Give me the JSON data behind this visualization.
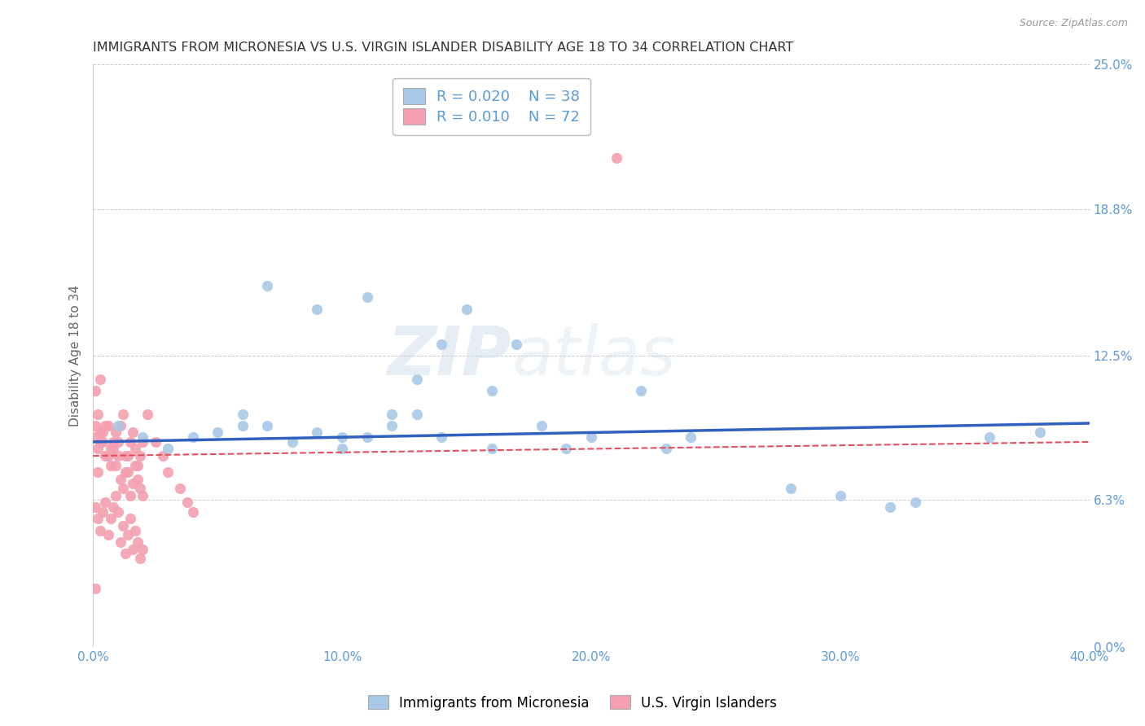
{
  "title": "IMMIGRANTS FROM MICRONESIA VS U.S. VIRGIN ISLANDER DISABILITY AGE 18 TO 34 CORRELATION CHART",
  "source": "Source: ZipAtlas.com",
  "ylabel": "Disability Age 18 to 34",
  "xlim": [
    0.0,
    0.4
  ],
  "ylim": [
    0.0,
    0.25
  ],
  "xticks": [
    0.0,
    0.1,
    0.2,
    0.3,
    0.4
  ],
  "xtick_labels": [
    "0.0%",
    "10.0%",
    "20.0%",
    "30.0%",
    "40.0%"
  ],
  "yticks": [
    0.0,
    0.063,
    0.125,
    0.188,
    0.25
  ],
  "ytick_labels_right": [
    "0.0%",
    "6.3%",
    "12.5%",
    "18.8%",
    "25.0%"
  ],
  "blue_color": "#A8C8E8",
  "pink_color": "#F4A0B0",
  "blue_line_color": "#3060C0",
  "pink_line_color": "#E05060",
  "legend_r1": "R = 0.020",
  "legend_n1": "N = 38",
  "legend_r2": "R = 0.010",
  "legend_n2": "N = 72",
  "series1_label": "Immigrants from Micronesia",
  "series2_label": "U.S. Virgin Islanders",
  "watermark": "ZIPatlas",
  "background_color": "#FFFFFF",
  "grid_color": "#CCCCCC",
  "title_color": "#333333",
  "axis_label_color": "#666666",
  "tick_color": "#5B9BD5",
  "blue_scatter_x": [
    0.01,
    0.02,
    0.03,
    0.04,
    0.05,
    0.06,
    0.07,
    0.08,
    0.09,
    0.1,
    0.11,
    0.12,
    0.13,
    0.14,
    0.15,
    0.16,
    0.17,
    0.18,
    0.2,
    0.22,
    0.06,
    0.07,
    0.09,
    0.1,
    0.11,
    0.12,
    0.13,
    0.14,
    0.16,
    0.19,
    0.23,
    0.24,
    0.28,
    0.3,
    0.32,
    0.33,
    0.36,
    0.38
  ],
  "blue_scatter_y": [
    0.095,
    0.09,
    0.085,
    0.09,
    0.092,
    0.1,
    0.095,
    0.088,
    0.092,
    0.09,
    0.15,
    0.095,
    0.1,
    0.13,
    0.145,
    0.11,
    0.13,
    0.095,
    0.09,
    0.11,
    0.095,
    0.155,
    0.145,
    0.085,
    0.09,
    0.1,
    0.115,
    0.09,
    0.085,
    0.085,
    0.085,
    0.09,
    0.068,
    0.065,
    0.06,
    0.062,
    0.09,
    0.092
  ],
  "pink_scatter_x": [
    0.001,
    0.002,
    0.003,
    0.004,
    0.005,
    0.006,
    0.007,
    0.008,
    0.009,
    0.01,
    0.011,
    0.012,
    0.013,
    0.014,
    0.015,
    0.016,
    0.017,
    0.018,
    0.019,
    0.02,
    0.001,
    0.002,
    0.003,
    0.004,
    0.005,
    0.006,
    0.007,
    0.008,
    0.009,
    0.01,
    0.011,
    0.012,
    0.013,
    0.014,
    0.015,
    0.016,
    0.017,
    0.018,
    0.019,
    0.02,
    0.001,
    0.002,
    0.003,
    0.004,
    0.005,
    0.006,
    0.007,
    0.008,
    0.009,
    0.01,
    0.011,
    0.012,
    0.013,
    0.014,
    0.015,
    0.016,
    0.017,
    0.018,
    0.019,
    0.02,
    0.001,
    0.002,
    0.003,
    0.022,
    0.025,
    0.028,
    0.03,
    0.035,
    0.038,
    0.04,
    0.001,
    0.21
  ],
  "pink_scatter_y": [
    0.09,
    0.085,
    0.092,
    0.088,
    0.095,
    0.082,
    0.078,
    0.085,
    0.092,
    0.088,
    0.095,
    0.1,
    0.082,
    0.075,
    0.088,
    0.092,
    0.085,
    0.078,
    0.082,
    0.088,
    0.095,
    0.075,
    0.088,
    0.092,
    0.082,
    0.095,
    0.085,
    0.088,
    0.078,
    0.082,
    0.072,
    0.068,
    0.075,
    0.082,
    0.065,
    0.07,
    0.078,
    0.072,
    0.068,
    0.065,
    0.06,
    0.055,
    0.05,
    0.058,
    0.062,
    0.048,
    0.055,
    0.06,
    0.065,
    0.058,
    0.045,
    0.052,
    0.04,
    0.048,
    0.055,
    0.042,
    0.05,
    0.045,
    0.038,
    0.042,
    0.11,
    0.1,
    0.115,
    0.1,
    0.088,
    0.082,
    0.075,
    0.068,
    0.062,
    0.058,
    0.025,
    0.21
  ]
}
